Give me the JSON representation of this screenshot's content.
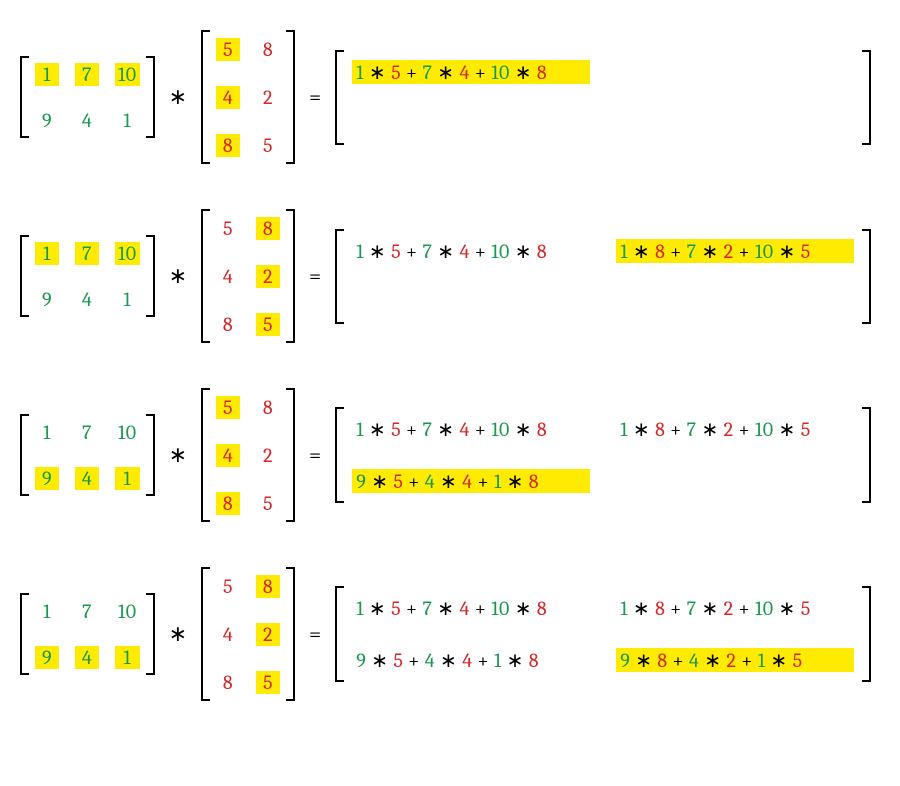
{
  "colors": {
    "green": "#1a9850",
    "red": "#d62728",
    "yellow_highlight": "#ffeb00",
    "black": "#000000",
    "background": "#ffffff"
  },
  "typography": {
    "font_family": "Cambria / Georgia serif",
    "base_fontsize_pt": 15,
    "weight": 500
  },
  "matrix_A": {
    "rows": 2,
    "cols": 3,
    "values": [
      [
        1,
        7,
        10
      ],
      [
        9,
        4,
        1
      ]
    ],
    "text_color": "#1a9850"
  },
  "matrix_B": {
    "rows": 3,
    "cols": 2,
    "values": [
      [
        5,
        8
      ],
      [
        4,
        2
      ],
      [
        8,
        5
      ]
    ],
    "text_color": "#d62728"
  },
  "result_expressions": {
    "r1c1": [
      [
        1,
        5
      ],
      [
        7,
        4
      ],
      [
        10,
        8
      ]
    ],
    "r1c2": [
      [
        1,
        8
      ],
      [
        7,
        2
      ],
      [
        10,
        5
      ]
    ],
    "r2c1": [
      [
        9,
        5
      ],
      [
        4,
        4
      ],
      [
        1,
        8
      ]
    ],
    "r2c2": [
      [
        9,
        8
      ],
      [
        4,
        2
      ],
      [
        1,
        5
      ]
    ]
  },
  "result_strings": {
    "r1c1": "1 ∗ 5 + 7 ∗ 4 + 10 ∗ 8",
    "r1c2": "1 ∗ 8 + 7 ∗ 2 + 10 ∗ 5",
    "r2c1": "9 ∗ 5 + 4 ∗ 4 + 1 ∗ 8",
    "r2c2": "9 ∗ 8 + 4 ∗ 2 + 1 ∗ 5"
  },
  "operators": {
    "multiply": "∗",
    "equals": "="
  },
  "steps": [
    {
      "id": 1,
      "A_highlight_row": 0,
      "B_highlight_col": 0,
      "result_filled": [
        "r1c1"
      ],
      "result_highlighted": "r1c1"
    },
    {
      "id": 2,
      "A_highlight_row": 0,
      "B_highlight_col": 1,
      "result_filled": [
        "r1c1",
        "r1c2"
      ],
      "result_highlighted": "r1c2"
    },
    {
      "id": 3,
      "A_highlight_row": 1,
      "B_highlight_col": 0,
      "result_filled": [
        "r1c1",
        "r1c2",
        "r2c1"
      ],
      "result_highlighted": "r2c1"
    },
    {
      "id": 4,
      "A_highlight_row": 1,
      "B_highlight_col": 1,
      "result_filled": [
        "r1c1",
        "r1c2",
        "r2c1",
        "r2c2"
      ],
      "result_highlighted": "r2c2"
    }
  ]
}
